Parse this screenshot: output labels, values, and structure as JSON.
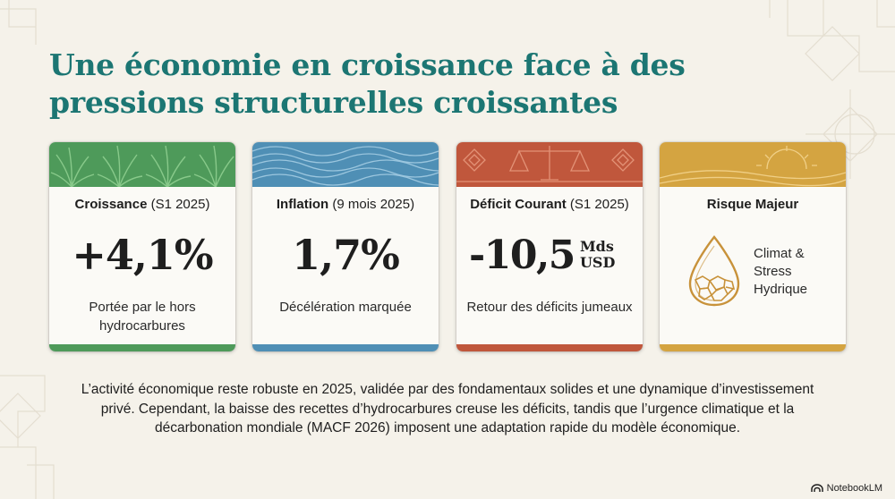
{
  "title": "Une économie en croissance face à des pressions structurelles croissantes",
  "colors": {
    "title": "#1c7673",
    "growth": "#4e9a5a",
    "inflation": "#4f8fb5",
    "deficit": "#c0573c",
    "risk": "#d4a441"
  },
  "cards": {
    "growth": {
      "label": "Croissance",
      "period": " (S1 2025)",
      "value": "+4,1%",
      "desc": "Portée par le hors hydrocarbures",
      "icon": "palm-leaves-icon"
    },
    "inflation": {
      "label": "Inflation",
      "period": " (9 mois 2025)",
      "value": "1,7%",
      "desc": "Décélération marquée",
      "icon": "waves-icon"
    },
    "deficit": {
      "label": "Déficit Courant",
      "period": " (S1 2025)",
      "value": "-10,5",
      "unit_top": "Mds",
      "unit_bottom": "USD",
      "desc": "Retour des déficits jumeaux",
      "icon": "scales-icon"
    },
    "risk": {
      "label": "Risque Majeur",
      "value": "Climat & Stress Hydrique",
      "icon": "dry-water-drop-icon"
    }
  },
  "paragraph": "L’activité économique reste robuste en 2025, validée par des fondamentaux solides et une dynamique d’investissement privé. Cependant, la baisse des recettes d’hydrocarbures creuse les déficits, tandis que l’urgence climatique et la décarbonation mondiale (MACF 2026) imposent une adaptation rapide du modèle économique.",
  "brand": "NotebookLM"
}
